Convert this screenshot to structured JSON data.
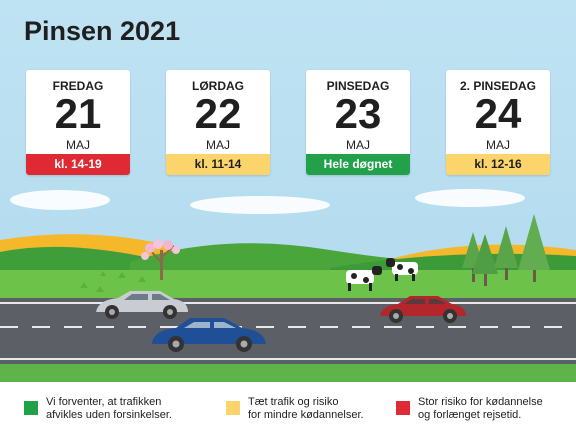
{
  "title": "Pinsen 2021",
  "colors": {
    "red": "#e02a33",
    "yellow": "#fbd46b",
    "green": "#23a04a",
    "sky": "#b9dff0",
    "road": "#5c5f66"
  },
  "days": [
    {
      "day": "FREDAG",
      "date": "21",
      "month": "MAJ",
      "time": "kl. 14-19",
      "level": "red"
    },
    {
      "day": "LØRDAG",
      "date": "22",
      "month": "MAJ",
      "time": "kl. 11-14",
      "level": "yellow"
    },
    {
      "day": "PINSEDAG",
      "date": "23",
      "month": "MAJ",
      "time": "Hele døgnet",
      "level": "green"
    },
    {
      "day": "2. PINSEDAG",
      "date": "24",
      "month": "MAJ",
      "time": "kl. 12-16",
      "level": "yellow"
    }
  ],
  "legend": [
    {
      "color": "green",
      "text": "Vi forventer, at trafikken\nafvikles uden forsinkelser."
    },
    {
      "color": "yellow",
      "text": "Tæt trafik og risiko\nfor mindre kødannelser."
    },
    {
      "color": "red",
      "text": "Stor risiko for kødannelse\nog forlænget rejsetid."
    }
  ]
}
